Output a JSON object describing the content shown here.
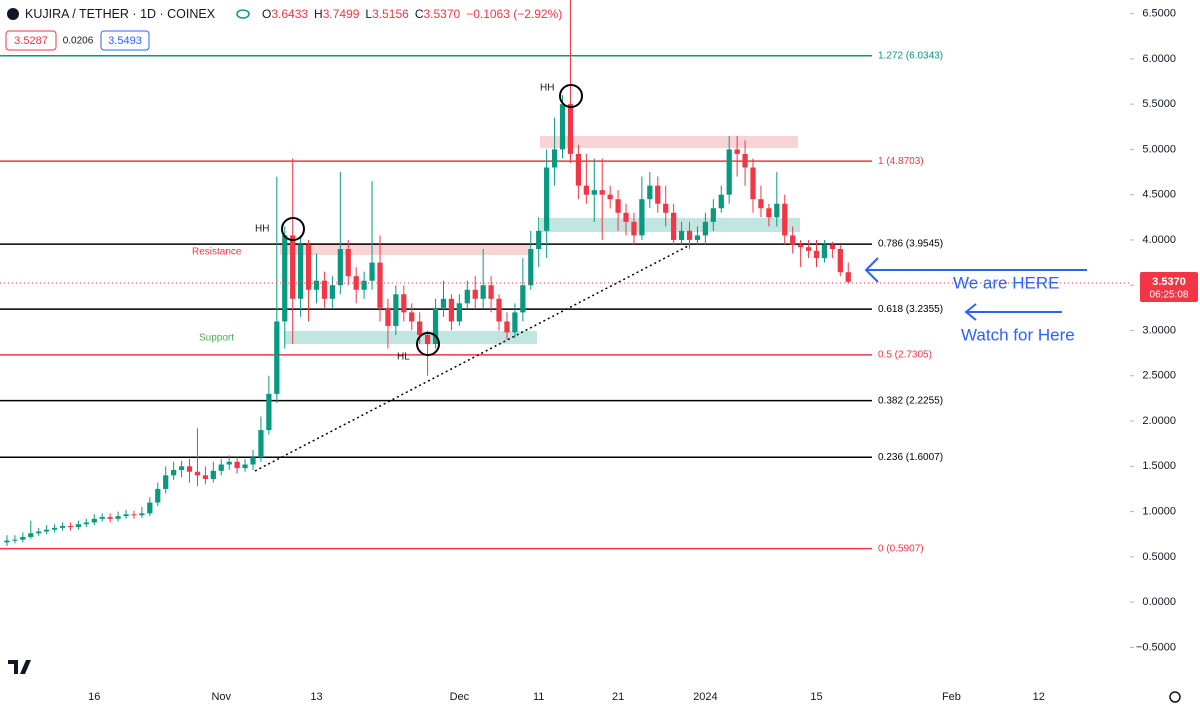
{
  "header": {
    "symbol": "KUJIRA / TETHER · 1D · COINEX",
    "open_label": "O",
    "open": "3.6433",
    "high_label": "H",
    "high": "3.7499",
    "low_label": "L",
    "low": "3.5156",
    "close_label": "C",
    "close": "3.5370",
    "change": "−0.1063 (−2.92%)",
    "bid": "3.5287",
    "spread": "0.0206",
    "ask": "3.5493"
  },
  "annotations": {
    "hh1": "HH",
    "hh2": "HH",
    "hl": "HL",
    "resistance": "Resistance",
    "support": "Support",
    "here": "We are HERE",
    "watch": "Watch for Here"
  },
  "chart_data": {
    "type": "candlestick",
    "categories": [
      null,
      null,
      null,
      null,
      null,
      null,
      null,
      null,
      null,
      null,
      null,
      "16",
      null,
      null,
      null,
      null,
      null,
      null,
      null,
      null,
      null,
      null,
      null,
      null,
      null,
      null,
      null,
      "Nov",
      null,
      null,
      null,
      null,
      null,
      null,
      null,
      null,
      null,
      null,
      null,
      "13",
      null,
      null,
      null,
      null,
      null,
      null,
      null,
      null,
      null,
      null,
      null,
      null,
      null,
      null,
      null,
      null,
      null,
      "Dec",
      null,
      null,
      null,
      null,
      null,
      null,
      null,
      null,
      null,
      "11",
      null,
      null,
      null,
      null,
      null,
      null,
      null,
      null,
      null,
      "21",
      null,
      null,
      null,
      null,
      null,
      null,
      null,
      null,
      null,
      null,
      "2024",
      null,
      null,
      null,
      null,
      null,
      null,
      null,
      null,
      null,
      null,
      null,
      null,
      null,
      "15",
      null,
      null,
      null,
      null,
      null,
      null,
      null,
      null,
      null,
      null,
      null,
      null,
      null,
      null,
      null,
      null,
      "Feb",
      null,
      null,
      null,
      null,
      null,
      null,
      null,
      null,
      null,
      null,
      "12",
      null,
      null,
      null,
      null,
      null,
      null,
      null,
      null,
      null,
      null,
      null
    ],
    "open": [
      0.66,
      0.68,
      0.69,
      0.72,
      0.76,
      0.78,
      0.8,
      0.82,
      0.84,
      0.83,
      0.86,
      0.88,
      0.92,
      0.94,
      0.92,
      0.95,
      0.97,
      0.96,
      0.98,
      1.1,
      1.25,
      1.4,
      1.46,
      1.5,
      1.44,
      1.4,
      1.36,
      1.45,
      1.52,
      1.55,
      1.48,
      1.52,
      1.6,
      1.9,
      2.3,
      3.1,
      4.05,
      3.35,
      3.95,
      3.45,
      3.55,
      3.35,
      3.5,
      3.9,
      3.6,
      3.45,
      3.55,
      3.75,
      3.25,
      3.05,
      3.4,
      3.2,
      3.1,
      2.95,
      2.85,
      3.25,
      3.35,
      3.1,
      3.3,
      3.45,
      3.35,
      3.5,
      3.35,
      3.1,
      2.98,
      3.2,
      3.5,
      3.9,
      4.1,
      4.8,
      5.0,
      5.5,
      4.95,
      4.6,
      4.5,
      4.55,
      4.5,
      4.45,
      4.3,
      4.2,
      4.05,
      4.45,
      4.6,
      4.4,
      4.3,
      4.0,
      4.1,
      4.0,
      4.05,
      4.2,
      4.35,
      4.5,
      5.0,
      4.95,
      4.8,
      4.45,
      4.35,
      4.25,
      4.4,
      4.05,
      3.95,
      3.92,
      3.88,
      3.8,
      3.95,
      3.9,
      3.6433,
      null,
      null,
      null,
      null,
      null,
      null,
      null,
      null,
      null,
      null,
      null,
      null,
      null,
      null,
      null,
      null,
      null,
      null,
      null,
      null,
      null,
      null,
      null,
      null,
      null,
      null,
      null,
      null,
      null,
      null,
      null,
      null,
      null,
      null,
      null
    ],
    "high": [
      0.74,
      0.74,
      0.77,
      0.9,
      0.82,
      0.85,
      0.86,
      0.88,
      0.88,
      0.9,
      0.92,
      0.97,
      0.98,
      0.98,
      1.0,
      1.02,
      1.01,
      1.05,
      1.16,
      1.32,
      1.5,
      1.55,
      1.56,
      1.58,
      1.92,
      1.5,
      1.55,
      1.58,
      1.62,
      1.6,
      1.58,
      1.68,
      2.05,
      2.5,
      4.7,
      4.15,
      4.9,
      4.05,
      4.0,
      3.85,
      3.65,
      3.6,
      4.75,
      4.0,
      3.7,
      3.65,
      4.65,
      4.05,
      3.35,
      3.5,
      3.5,
      3.3,
      3.2,
      3.0,
      3.35,
      3.55,
      3.4,
      3.4,
      3.55,
      3.6,
      3.9,
      3.6,
      3.4,
      3.2,
      3.3,
      3.8,
      4.1,
      4.25,
      5.0,
      5.35,
      5.6,
      6.9,
      5.05,
      4.95,
      4.9,
      4.9,
      4.6,
      4.55,
      4.4,
      4.3,
      4.7,
      4.75,
      4.7,
      4.6,
      4.4,
      4.2,
      4.2,
      4.15,
      4.3,
      4.45,
      4.6,
      5.15,
      5.15,
      5.1,
      4.9,
      4.6,
      4.4,
      4.75,
      4.5,
      4.15,
      4.0,
      4.0,
      4.0,
      4.0,
      3.98,
      3.95,
      3.7499,
      null,
      null,
      null,
      null,
      null,
      null,
      null,
      null,
      null,
      null,
      null,
      null,
      null,
      null,
      null,
      null,
      null,
      null,
      null,
      null,
      null,
      null,
      null,
      null,
      null,
      null,
      null,
      null,
      null,
      null,
      null,
      null,
      null,
      null,
      null
    ],
    "low": [
      0.62,
      0.65,
      0.66,
      0.7,
      0.73,
      0.75,
      0.77,
      0.79,
      0.79,
      0.8,
      0.83,
      0.85,
      0.89,
      0.88,
      0.89,
      0.92,
      0.92,
      0.93,
      0.95,
      1.06,
      1.2,
      1.35,
      1.38,
      1.32,
      1.28,
      1.3,
      1.32,
      1.4,
      1.46,
      1.42,
      1.44,
      1.46,
      1.55,
      1.85,
      2.2,
      2.8,
      2.85,
      3.15,
      3.1,
      3.3,
      3.25,
      3.25,
      3.4,
      3.5,
      3.3,
      3.35,
      3.45,
      3.1,
      2.8,
      2.95,
      3.1,
      3.0,
      2.85,
      2.5,
      2.8,
      3.15,
      3.0,
      3.05,
      3.25,
      3.25,
      3.25,
      3.2,
      3.0,
      2.9,
      2.92,
      3.1,
      3.45,
      3.7,
      3.8,
      4.6,
      4.9,
      4.85,
      4.45,
      4.4,
      4.2,
      4.0,
      4.35,
      4.1,
      4.05,
      3.95,
      4.0,
      4.35,
      4.3,
      4.15,
      3.95,
      3.95,
      3.9,
      3.95,
      3.95,
      4.1,
      4.3,
      4.4,
      4.7,
      4.6,
      4.3,
      4.25,
      4.15,
      4.15,
      3.95,
      3.85,
      3.7,
      3.8,
      3.7,
      3.75,
      3.8,
      3.6,
      3.5156,
      null,
      null,
      null,
      null,
      null,
      null,
      null,
      null,
      null,
      null,
      null,
      null,
      null,
      null,
      null,
      null,
      null,
      null,
      null,
      null,
      null,
      null,
      null,
      null,
      null,
      null,
      null,
      null,
      null,
      null,
      null,
      null,
      null,
      null,
      null
    ],
    "close": [
      0.68,
      0.69,
      0.72,
      0.76,
      0.78,
      0.8,
      0.82,
      0.84,
      0.83,
      0.86,
      0.88,
      0.92,
      0.94,
      0.92,
      0.95,
      0.97,
      0.96,
      0.98,
      1.1,
      1.25,
      1.4,
      1.46,
      1.5,
      1.44,
      1.4,
      1.36,
      1.45,
      1.52,
      1.55,
      1.48,
      1.52,
      1.6,
      1.9,
      2.3,
      3.1,
      4.05,
      3.35,
      3.95,
      3.45,
      3.55,
      3.35,
      3.5,
      3.9,
      3.6,
      3.45,
      3.55,
      3.75,
      3.25,
      3.05,
      3.4,
      3.2,
      3.1,
      2.95,
      2.85,
      3.25,
      3.35,
      3.1,
      3.3,
      3.45,
      3.35,
      3.5,
      3.35,
      3.1,
      2.98,
      3.2,
      3.5,
      3.9,
      4.1,
      4.8,
      5.0,
      5.5,
      4.95,
      4.6,
      4.5,
      4.55,
      4.5,
      4.45,
      4.3,
      4.2,
      4.05,
      4.45,
      4.6,
      4.4,
      4.3,
      4.0,
      4.1,
      4.0,
      4.05,
      4.2,
      4.35,
      4.5,
      5.0,
      4.95,
      4.8,
      4.45,
      4.35,
      4.25,
      4.4,
      4.05,
      3.95,
      3.92,
      3.88,
      3.8,
      3.95,
      3.9,
      3.6433,
      3.537,
      null,
      null,
      null,
      null,
      null,
      null,
      null,
      null,
      null,
      null,
      null,
      null,
      null,
      null,
      null,
      null,
      null,
      null,
      null,
      null,
      null,
      null,
      null,
      null,
      null,
      null,
      null,
      null,
      null,
      null,
      null,
      null,
      null,
      null,
      null
    ],
    "up_color": "#089981",
    "down_color": "#f23645",
    "ylim": [
      -0.86,
      6.65
    ],
    "yticks": [
      {
        "value": 6.5,
        "label": "6.5000"
      },
      {
        "value": 6,
        "label": "6.0000"
      },
      {
        "value": 5.5,
        "label": "5.5000"
      },
      {
        "value": 5,
        "label": "5.0000"
      },
      {
        "value": 4.5,
        "label": "4.5000"
      },
      {
        "value": 4,
        "label": "4.0000"
      },
      {
        "value": 3.5,
        "label": "3.5000"
      },
      {
        "value": 3,
        "label": "3.0000"
      },
      {
        "value": 2.5,
        "label": "2.5000"
      },
      {
        "value": 2,
        "label": "2.0000"
      },
      {
        "value": 1.5,
        "label": "1.5000"
      },
      {
        "value": 1,
        "label": "1.0000"
      },
      {
        "value": 0.5,
        "label": "0.5000"
      },
      {
        "value": 0,
        "label": "0.0000"
      },
      {
        "value": -0.5,
        "label": "−0.5000"
      }
    ],
    "levels": [
      {
        "label": "1.272 (6.0343)",
        "value": 6.0343,
        "color": "#089981"
      },
      {
        "label": "1 (4.8703)",
        "value": 4.8703,
        "color": "#f23645"
      },
      {
        "label": "0.786 (3.9545)",
        "value": 3.9545,
        "color": "#000000"
      },
      {
        "label": "0.618 (3.2355)",
        "value": 3.2355,
        "color": "#000000"
      },
      {
        "label": "0.5 (2.7305)",
        "value": 2.7305,
        "color": "#f23645"
      },
      {
        "label": "0.382 (2.2255)",
        "value": 2.2255,
        "color": "#000000"
      },
      {
        "label": "0.236 (1.6007)",
        "value": 1.6007,
        "color": "#000000"
      },
      {
        "label": "0 (0.5907)",
        "value": 0.5907,
        "color": "#f23645"
      }
    ],
    "last_price": "3.5370",
    "countdown": "06:25:08"
  }
}
